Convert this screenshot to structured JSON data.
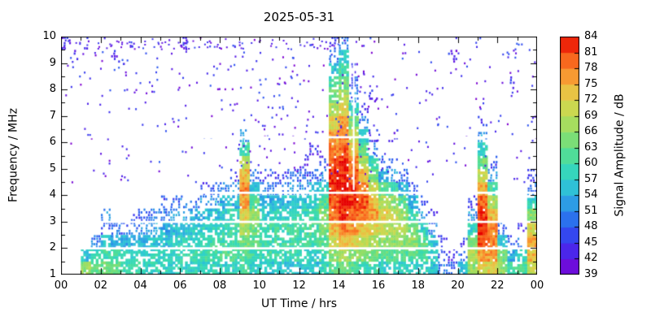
{
  "title": "2025-05-31",
  "x_axis": {
    "label": "UT Time / hrs",
    "min": 0,
    "max": 24,
    "major_tick_hours": [
      0,
      2,
      4,
      6,
      8,
      10,
      12,
      14,
      16,
      18,
      20,
      22,
      24
    ],
    "major_tick_labels": [
      "00",
      "02",
      "04",
      "06",
      "08",
      "10",
      "12",
      "14",
      "16",
      "18",
      "20",
      "22",
      "00"
    ],
    "minor_tick_hours": [
      1,
      3,
      5,
      7,
      9,
      11,
      13,
      15,
      17,
      19,
      21,
      23
    ]
  },
  "y_axis": {
    "label": "Frequency / MHz",
    "min": 1,
    "max": 10,
    "major_ticks": [
      1,
      2,
      3,
      4,
      5,
      6,
      7,
      8,
      9,
      10
    ],
    "major_tick_labels": [
      "1",
      "2",
      "3",
      "4",
      "5",
      "6",
      "7",
      "8",
      "9",
      "10"
    ],
    "minor_ticks": [
      1.5,
      2.5,
      3.5,
      4.5,
      5.5,
      6.5,
      7.5,
      8.5,
      9.5
    ]
  },
  "colorbar": {
    "label": "Signal Amplitude / dB",
    "min": 39,
    "max": 84,
    "ticks": [
      39,
      42,
      45,
      48,
      51,
      54,
      57,
      60,
      63,
      66,
      69,
      72,
      75,
      78,
      81,
      84
    ],
    "color_stops": [
      {
        "v": 39,
        "c": "#8000d0"
      },
      {
        "v": 42,
        "c": "#5a1ae6"
      },
      {
        "v": 45,
        "c": "#3c32ee"
      },
      {
        "v": 48,
        "c": "#2b5cf0"
      },
      {
        "v": 51,
        "c": "#2a86ea"
      },
      {
        "v": 54,
        "c": "#2fb2e0"
      },
      {
        "v": 57,
        "c": "#2fd0cc"
      },
      {
        "v": 60,
        "c": "#3cdcab"
      },
      {
        "v": 63,
        "c": "#63de86"
      },
      {
        "v": 66,
        "c": "#92de68"
      },
      {
        "v": 69,
        "c": "#badc55"
      },
      {
        "v": 72,
        "c": "#dcd34b"
      },
      {
        "v": 75,
        "c": "#f4b23c"
      },
      {
        "v": 78,
        "c": "#fa8128"
      },
      {
        "v": 81,
        "c": "#f64e14"
      },
      {
        "v": 84,
        "c": "#e60000"
      }
    ]
  },
  "chart_data": {
    "type": "heatmap",
    "title": "2025-05-31",
    "xlabel": "UT Time / hrs",
    "ylabel": "Frequency / MHz",
    "zlabel": "Signal Amplitude / dB",
    "x_range_hours": [
      0,
      24
    ],
    "y_range_mhz": [
      1,
      10
    ],
    "z_range_db": [
      39,
      84
    ],
    "time_bin_hours": 0.5,
    "freq_bin_mhz": 0.5,
    "freq_start_mhz": 1.0,
    "no_signal_value": 0,
    "amplitude_db_columns": [
      [
        0,
        0,
        0,
        0,
        0,
        0,
        0,
        0,
        0,
        0,
        0,
        0,
        0,
        0,
        0,
        0,
        0,
        44
      ],
      [
        0,
        0,
        0,
        0,
        0,
        0,
        0,
        0,
        0,
        0,
        0,
        0,
        0,
        0,
        0,
        0,
        44,
        0
      ],
      [
        66,
        56,
        0,
        0,
        0,
        0,
        0,
        0,
        0,
        0,
        0,
        0,
        0,
        0,
        0,
        0,
        0,
        44
      ],
      [
        62,
        58,
        50,
        0,
        0,
        0,
        0,
        0,
        0,
        0,
        0,
        0,
        0,
        0,
        0,
        0,
        0,
        0
      ],
      [
        64,
        60,
        56,
        48,
        52,
        0,
        0,
        0,
        0,
        0,
        0,
        0,
        0,
        0,
        0,
        0,
        0,
        0
      ],
      [
        62,
        60,
        54,
        50,
        0,
        0,
        0,
        0,
        0,
        0,
        0,
        0,
        0,
        0,
        0,
        0,
        44,
        0
      ],
      [
        60,
        58,
        54,
        48,
        0,
        0,
        0,
        0,
        0,
        0,
        0,
        0,
        0,
        0,
        0,
        0,
        0,
        0
      ],
      [
        60,
        58,
        55,
        50,
        46,
        0,
        0,
        0,
        0,
        0,
        0,
        0,
        0,
        0,
        0,
        0,
        0,
        0
      ],
      [
        58,
        57,
        55,
        52,
        48,
        0,
        0,
        0,
        0,
        0,
        0,
        0,
        0,
        0,
        0,
        0,
        0,
        0
      ],
      [
        58,
        58,
        56,
        53,
        50,
        0,
        0,
        0,
        0,
        0,
        0,
        0,
        0,
        0,
        0,
        0,
        0,
        0
      ],
      [
        58,
        58,
        56,
        54,
        50,
        46,
        0,
        0,
        0,
        0,
        0,
        0,
        0,
        0,
        0,
        0,
        0,
        0
      ],
      [
        58,
        59,
        57,
        55,
        52,
        48,
        0,
        0,
        0,
        0,
        0,
        0,
        0,
        0,
        0,
        0,
        0,
        0
      ],
      [
        58,
        59,
        58,
        56,
        53,
        50,
        0,
        0,
        0,
        0,
        0,
        0,
        0,
        0,
        0,
        0,
        0,
        44
      ],
      [
        58,
        60,
        58,
        57,
        54,
        50,
        0,
        0,
        0,
        0,
        0,
        0,
        0,
        0,
        0,
        0,
        0,
        0
      ],
      [
        58,
        60,
        59,
        58,
        55,
        52,
        46,
        0,
        0,
        0,
        0,
        0,
        0,
        0,
        0,
        0,
        0,
        0
      ],
      [
        58,
        60,
        60,
        58,
        56,
        53,
        48,
        0,
        0,
        0,
        0,
        0,
        0,
        0,
        0,
        0,
        0,
        0
      ],
      [
        58,
        61,
        60,
        59,
        57,
        54,
        50,
        0,
        0,
        0,
        0,
        0,
        0,
        0,
        0,
        0,
        0,
        0
      ],
      [
        58,
        61,
        61,
        60,
        58,
        55,
        52,
        46,
        0,
        0,
        0,
        0,
        0,
        0,
        0,
        0,
        0,
        0
      ],
      [
        60,
        62,
        64,
        68,
        72,
        76,
        78,
        74,
        68,
        60,
        52,
        0,
        0,
        0,
        0,
        0,
        0,
        0
      ],
      [
        58,
        60,
        62,
        64,
        66,
        62,
        56,
        50,
        0,
        0,
        0,
        0,
        0,
        0,
        0,
        0,
        0,
        0
      ],
      [
        57,
        60,
        60,
        59,
        57,
        54,
        50,
        46,
        0,
        0,
        0,
        0,
        0,
        0,
        0,
        0,
        0,
        0
      ],
      [
        57,
        60,
        60,
        60,
        58,
        54,
        50,
        46,
        0,
        0,
        0,
        0,
        0,
        0,
        0,
        0,
        0,
        0
      ],
      [
        56,
        59,
        60,
        60,
        58,
        55,
        50,
        47,
        0,
        0,
        0,
        0,
        0,
        0,
        0,
        0,
        0,
        0
      ],
      [
        56,
        59,
        60,
        60,
        59,
        56,
        52,
        48,
        0,
        0,
        0,
        0,
        0,
        0,
        0,
        0,
        0,
        0
      ],
      [
        56,
        58,
        60,
        60,
        59,
        56,
        52,
        48,
        44,
        0,
        0,
        0,
        0,
        0,
        0,
        0,
        0,
        0
      ],
      [
        56,
        58,
        60,
        61,
        60,
        58,
        54,
        48,
        0,
        44,
        0,
        0,
        0,
        0,
        0,
        0,
        0,
        0
      ],
      [
        58,
        60,
        62,
        64,
        66,
        62,
        58,
        52,
        46,
        0,
        0,
        0,
        0,
        0,
        0,
        0,
        0,
        0
      ],
      [
        62,
        66,
        70,
        74,
        78,
        80,
        82,
        82,
        80,
        78,
        76,
        72,
        68,
        64,
        60,
        56,
        50,
        46
      ],
      [
        64,
        68,
        74,
        78,
        82,
        84,
        84,
        83,
        82,
        80,
        78,
        76,
        72,
        68,
        64,
        60,
        56,
        50
      ],
      [
        62,
        66,
        72,
        76,
        80,
        82,
        82,
        80,
        78,
        74,
        70,
        64,
        58,
        52,
        48,
        44,
        0,
        0
      ],
      [
        60,
        64,
        70,
        74,
        78,
        80,
        78,
        74,
        68,
        62,
        56,
        50,
        45,
        0,
        0,
        0,
        0,
        0
      ],
      [
        60,
        64,
        68,
        72,
        76,
        74,
        70,
        64,
        58,
        52,
        46,
        0,
        0,
        44,
        0,
        0,
        0,
        0
      ],
      [
        58,
        62,
        66,
        70,
        72,
        68,
        62,
        54,
        48,
        0,
        0,
        0,
        0,
        0,
        0,
        0,
        0,
        0
      ],
      [
        58,
        62,
        66,
        68,
        70,
        66,
        60,
        52,
        46,
        0,
        44,
        0,
        0,
        0,
        0,
        0,
        0,
        0
      ],
      [
        58,
        62,
        66,
        68,
        66,
        62,
        54,
        48,
        0,
        0,
        0,
        0,
        0,
        0,
        0,
        0,
        0,
        0
      ],
      [
        58,
        62,
        66,
        64,
        60,
        54,
        48,
        0,
        0,
        0,
        0,
        0,
        0,
        0,
        0,
        0,
        0,
        0
      ],
      [
        58,
        62,
        62,
        58,
        52,
        46,
        0,
        0,
        0,
        0,
        0,
        0,
        0,
        0,
        0,
        0,
        0,
        0
      ],
      [
        56,
        58,
        56,
        50,
        45,
        0,
        0,
        0,
        0,
        0,
        0,
        0,
        0,
        0,
        0,
        0,
        0,
        0
      ],
      [
        50,
        48,
        44,
        0,
        0,
        0,
        0,
        0,
        0,
        0,
        0,
        0,
        0,
        0,
        0,
        0,
        0,
        0
      ],
      [
        48,
        44,
        0,
        0,
        0,
        0,
        0,
        0,
        0,
        0,
        0,
        0,
        0,
        0,
        0,
        0,
        44,
        0
      ],
      [
        56,
        50,
        46,
        0,
        0,
        0,
        0,
        0,
        0,
        0,
        0,
        0,
        0,
        0,
        0,
        0,
        0,
        0
      ],
      [
        66,
        68,
        64,
        58,
        52,
        46,
        0,
        0,
        0,
        0,
        0,
        0,
        0,
        0,
        0,
        0,
        0,
        0
      ],
      [
        72,
        76,
        80,
        82,
        82,
        80,
        76,
        70,
        64,
        58,
        52,
        46,
        0,
        0,
        0,
        0,
        0,
        0
      ],
      [
        72,
        76,
        78,
        78,
        74,
        68,
        60,
        52,
        46,
        0,
        0,
        0,
        0,
        0,
        0,
        0,
        0,
        0
      ],
      [
        66,
        64,
        56,
        48,
        0,
        0,
        0,
        0,
        0,
        0,
        0,
        0,
        0,
        0,
        0,
        0,
        0,
        0
      ],
      [
        60,
        54,
        46,
        0,
        0,
        0,
        0,
        0,
        0,
        0,
        0,
        0,
        0,
        0,
        44,
        0,
        0,
        0
      ],
      [
        62,
        58,
        50,
        44,
        0,
        0,
        0,
        0,
        0,
        0,
        0,
        0,
        0,
        0,
        0,
        0,
        0,
        0
      ],
      [
        70,
        74,
        76,
        72,
        66,
        58,
        50,
        45,
        0,
        0,
        0,
        0,
        0,
        0,
        0,
        0,
        0,
        0
      ]
    ],
    "rfi_gap_freqs_mhz": [
      2.0,
      3.0,
      4.1,
      6.2
    ],
    "rfi_gap_time_hours": [
      14.75
    ],
    "background_noise": {
      "dot_count": 420,
      "extra_top_dot_count": 90,
      "amplitude_db_range": [
        39,
        48
      ],
      "freq_range_mhz": [
        4.5,
        10
      ]
    }
  }
}
